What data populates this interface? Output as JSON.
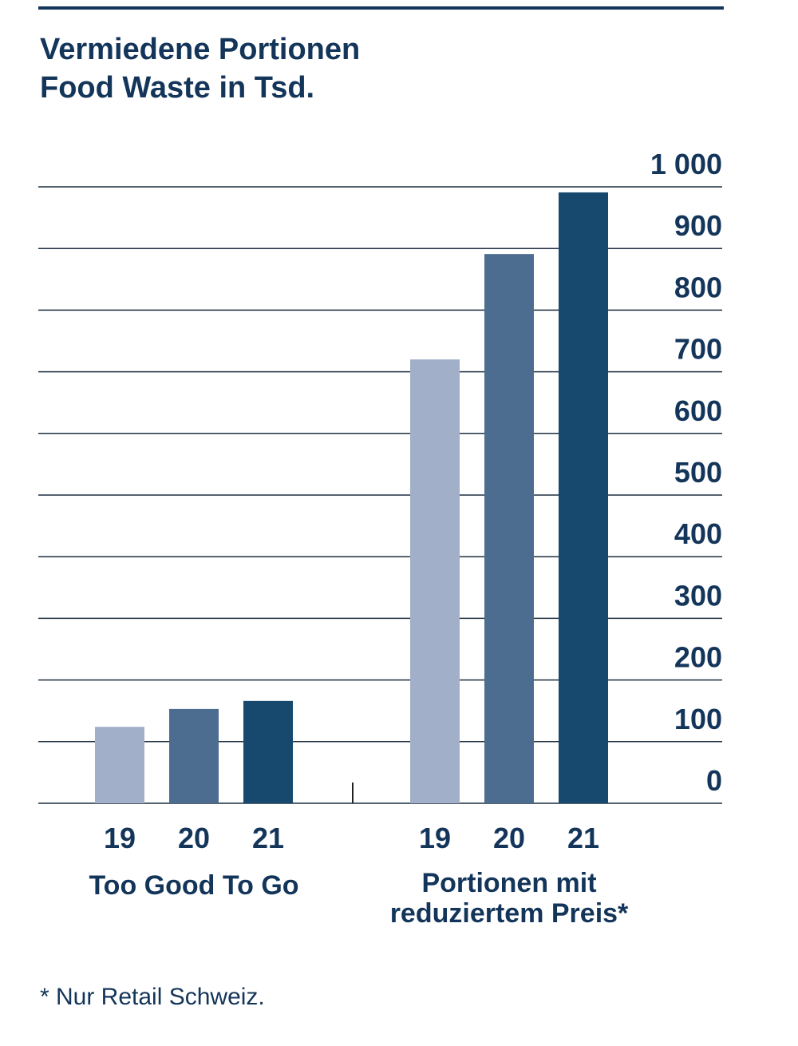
{
  "chart_data": {
    "type": "bar",
    "title": "Vermiedene Portionen\nFood Waste in Tsd.",
    "categories": [
      "Too Good To Go",
      "Portionen mit\nreduziertem Preis*"
    ],
    "series": [
      {
        "name": "19",
        "color": "#a2afc9",
        "values": [
          124,
          720
        ]
      },
      {
        "name": "20",
        "color": "#4d6d90",
        "values": [
          153,
          891
        ]
      },
      {
        "name": "21",
        "color": "#17496f",
        "values": [
          166,
          991
        ]
      }
    ],
    "ylim": [
      0,
      1000
    ],
    "yticks": [
      0,
      100,
      200,
      300,
      400,
      500,
      600,
      700,
      800,
      900,
      {
        "value": 1000,
        "label": "1 000"
      }
    ],
    "grid": true,
    "note": "* Nur Retail Schweiz."
  }
}
